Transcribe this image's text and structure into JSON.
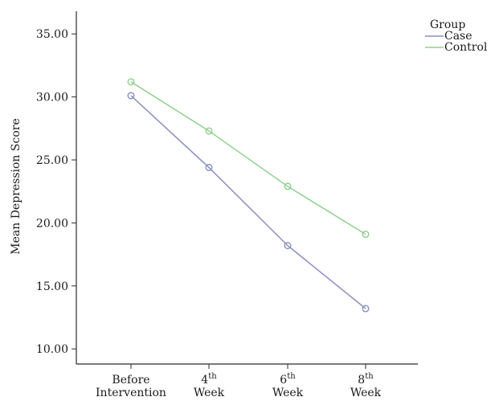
{
  "chart_data": {
    "type": "line",
    "title": "",
    "xlabel": "",
    "ylabel": "Mean Depression Score",
    "ylim": [
      8.8,
      36.8
    ],
    "yticks": [
      10,
      15,
      20,
      25,
      30,
      35
    ],
    "ytick_labels": [
      "10.00",
      "15.00",
      "20.00",
      "25.00",
      "30.00",
      "35.00"
    ],
    "categories": [
      {
        "line1": "Before",
        "line1_sup": "",
        "line2": "Intervention"
      },
      {
        "line1": "4",
        "line1_sup": "th",
        "line2": "Week"
      },
      {
        "line1": "6",
        "line1_sup": "th",
        "line2": "Week"
      },
      {
        "line1": "8",
        "line1_sup": "th",
        "line2": "Week"
      }
    ],
    "legend": {
      "title": "Group",
      "position": "top-right"
    },
    "series": [
      {
        "name": "Case",
        "color": "#8a8fbf",
        "values": [
          30.1,
          24.4,
          18.2,
          13.2
        ]
      },
      {
        "name": "Control",
        "color": "#8fcf8f",
        "values": [
          31.2,
          27.3,
          22.9,
          19.1
        ]
      }
    ],
    "grid": false
  }
}
